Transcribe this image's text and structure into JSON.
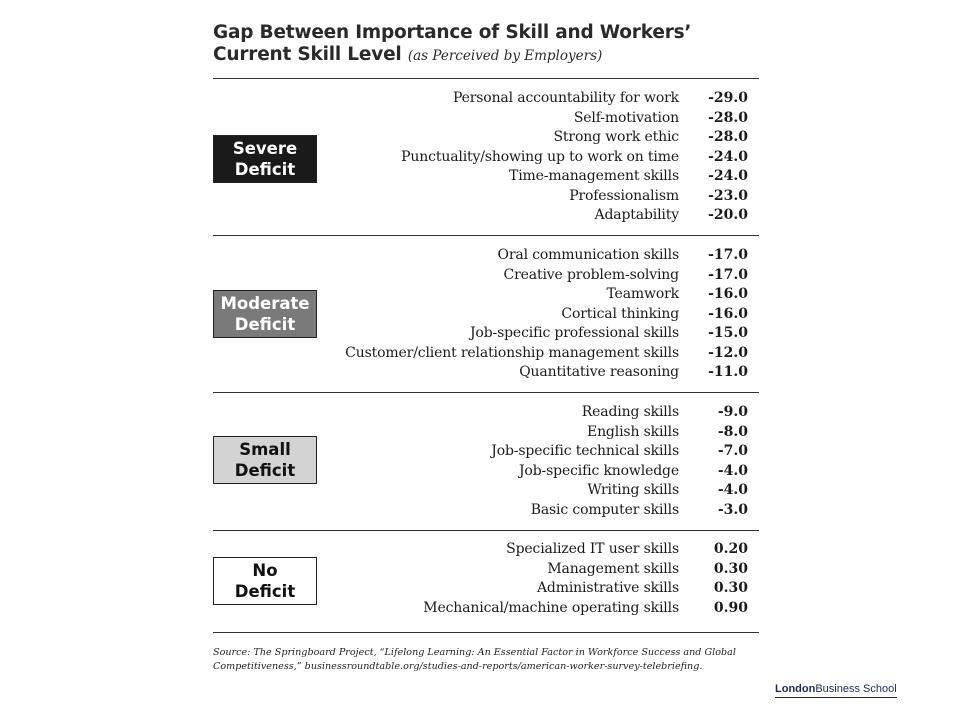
{
  "title": {
    "line1": "Gap Between Importance of Skill and Workers’",
    "line2_main": "Current Skill Level",
    "line2_sub": "(as Perceived by Employers)"
  },
  "groups": [
    {
      "badge_line1": "Severe",
      "badge_line2": "Deficit",
      "badge_bg": "#1a1a1a",
      "badge_fg": "#ffffff",
      "rows": [
        {
          "skill": "Personal accountability for work",
          "gap": "-29.0"
        },
        {
          "skill": "Self-motivation",
          "gap": "-28.0"
        },
        {
          "skill": "Strong work ethic",
          "gap": "-28.0"
        },
        {
          "skill": "Punctuality/showing up to work on time",
          "gap": "-24.0"
        },
        {
          "skill": "Time-management skills",
          "gap": "-24.0"
        },
        {
          "skill": "Professionalism",
          "gap": "-23.0"
        },
        {
          "skill": "Adaptability",
          "gap": "-20.0"
        }
      ]
    },
    {
      "badge_line1": "Moderate",
      "badge_line2": "Deficit",
      "badge_bg": "#7a7a7a",
      "badge_fg": "#ffffff",
      "rows": [
        {
          "skill": "Oral communication skills",
          "gap": "-17.0"
        },
        {
          "skill": "Creative problem-solving",
          "gap": "-17.0"
        },
        {
          "skill": "Teamwork",
          "gap": "-16.0"
        },
        {
          "skill": "Cortical thinking",
          "gap": "-16.0"
        },
        {
          "skill": "Job-specific professional skills",
          "gap": "-15.0"
        },
        {
          "skill": "Customer/client relationship management skills",
          "gap": "-12.0"
        },
        {
          "skill": "Quantitative reasoning",
          "gap": "-11.0"
        }
      ]
    },
    {
      "badge_line1": "Small",
      "badge_line2": "Deficit",
      "badge_bg": "#d3d3d3",
      "badge_fg": "#111111",
      "rows": [
        {
          "skill": "Reading skills",
          "gap": "-9.0"
        },
        {
          "skill": "English skills",
          "gap": "-8.0"
        },
        {
          "skill": "Job-specific technical skills",
          "gap": "-7.0"
        },
        {
          "skill": "Job-specific knowledge",
          "gap": "-4.0"
        },
        {
          "skill": "Writing skills",
          "gap": "-4.0"
        },
        {
          "skill": "Basic computer skills",
          "gap": "-3.0"
        }
      ]
    },
    {
      "badge_line1": "No",
      "badge_line2": "Deficit",
      "badge_bg": "#ffffff",
      "badge_fg": "#111111",
      "rows": [
        {
          "skill": "Specialized IT user skills",
          "gap": "0.20"
        },
        {
          "skill": "Management skills",
          "gap": "0.30"
        },
        {
          "skill": "Administrative skills",
          "gap": "0.30"
        },
        {
          "skill": "Mechanical/machine operating skills",
          "gap": "0.90"
        }
      ]
    }
  ],
  "source": {
    "line1": "Source: The Springboard Project, “Lifelong Learning: An Essential Factor in Workforce Success and Global",
    "line2": "Competitiveness,” businessroundtable.org/studies-and-reports/american-worker-survey-telebriefing."
  },
  "logo": {
    "bold": "London",
    "rest": "Business School"
  }
}
